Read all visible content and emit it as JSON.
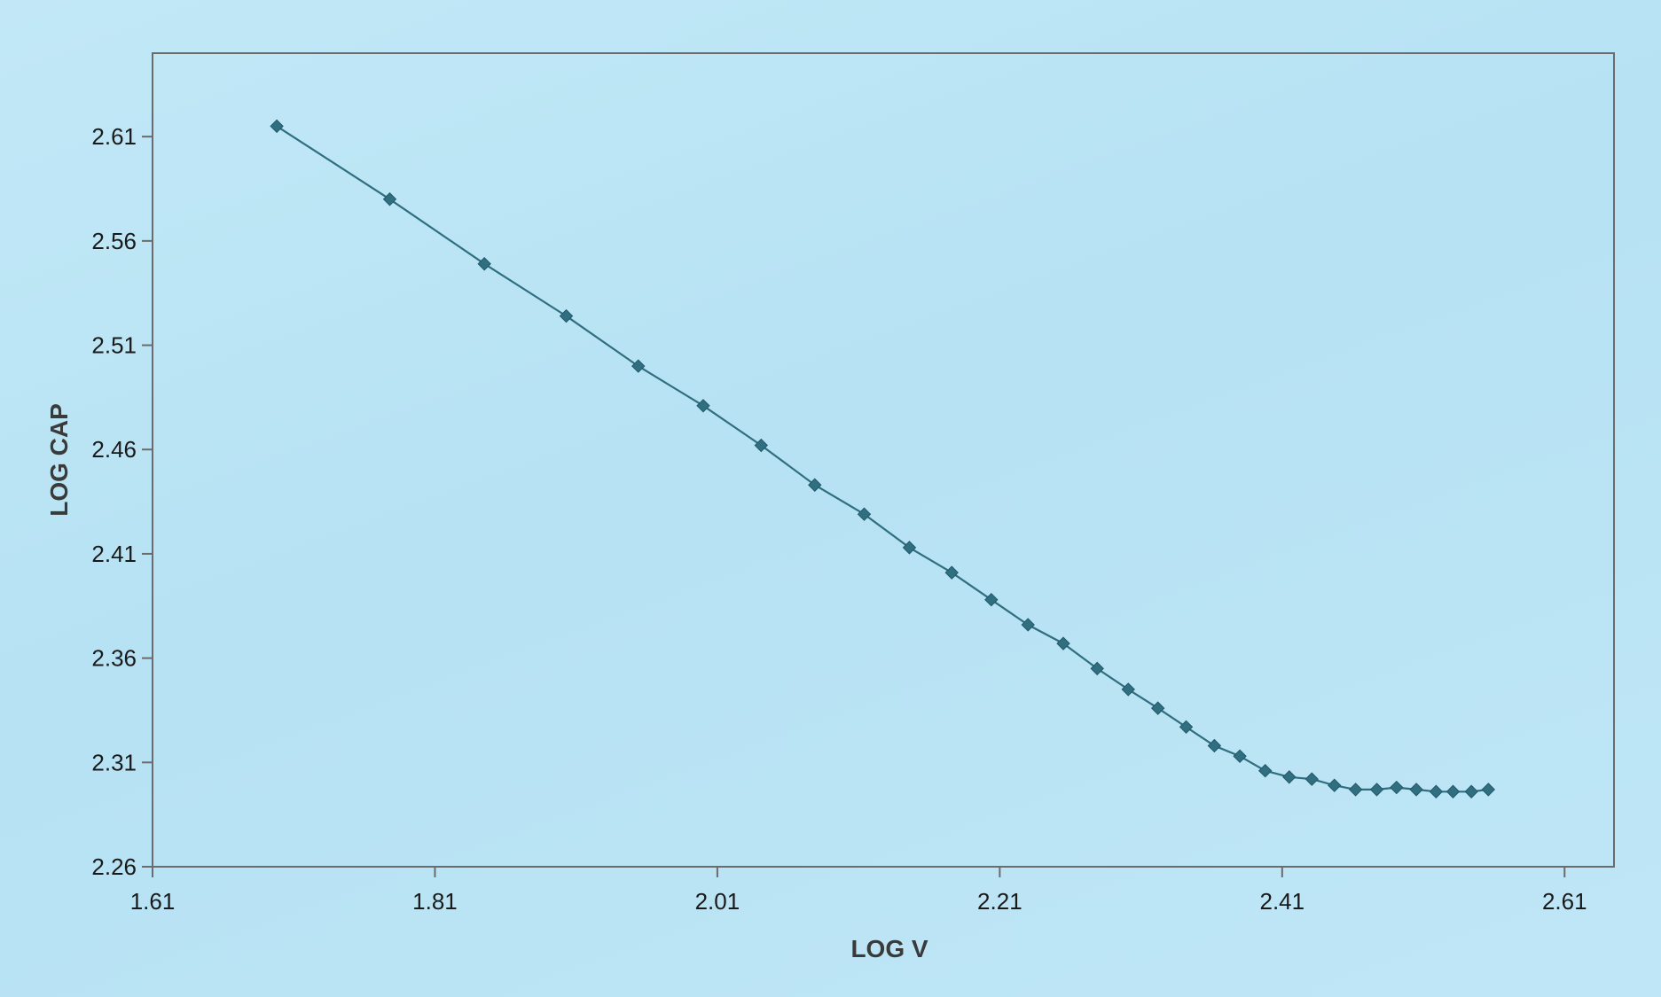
{
  "chart_data": {
    "type": "line",
    "title": "",
    "xlabel": "LOG V",
    "ylabel": "LOG CAP",
    "xlim": [
      1.61,
      2.645
    ],
    "ylim": [
      2.26,
      2.65
    ],
    "xticks": [
      "1.61",
      "1.81",
      "2.01",
      "2.21",
      "2.41",
      "2.61"
    ],
    "yticks": [
      "2.26",
      "2.31",
      "2.36",
      "2.41",
      "2.46",
      "2.51",
      "2.56",
      "2.61"
    ],
    "grid": false,
    "legend": "none",
    "series": [
      {
        "marker": "diamond",
        "color": "#2f6f80",
        "x": [
          1.698,
          1.778,
          1.845,
          1.903,
          1.954,
          2.0,
          2.041,
          2.079,
          2.114,
          2.146,
          2.176,
          2.204,
          2.23,
          2.255,
          2.279,
          2.301,
          2.322,
          2.342,
          2.362,
          2.38,
          2.398,
          2.415,
          2.431,
          2.447,
          2.462,
          2.477,
          2.491,
          2.505,
          2.519,
          2.531,
          2.544,
          2.556
        ],
        "y": [
          2.615,
          2.58,
          2.549,
          2.524,
          2.5,
          2.481,
          2.462,
          2.443,
          2.429,
          2.413,
          2.401,
          2.388,
          2.376,
          2.367,
          2.355,
          2.345,
          2.336,
          2.327,
          2.318,
          2.313,
          2.306,
          2.303,
          2.302,
          2.299,
          2.297,
          2.297,
          2.298,
          2.297,
          2.296,
          2.296,
          2.296,
          2.297
        ]
      }
    ]
  }
}
